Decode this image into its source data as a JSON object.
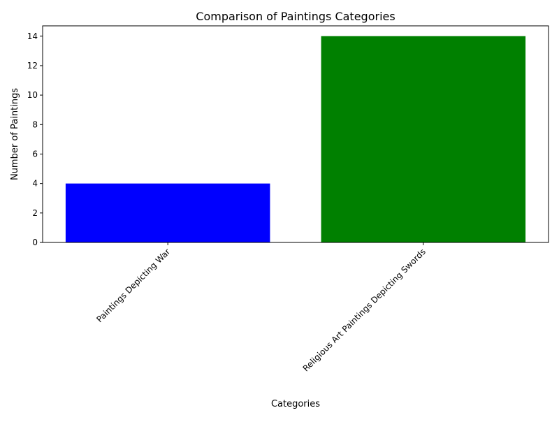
{
  "chart_data": {
    "type": "bar",
    "title": "Comparison of Paintings Categories",
    "xlabel": "Categories",
    "ylabel": "Number of Paintings",
    "categories": [
      "Paintings Depicting War",
      "Religious Art Paintings Depicting Swords"
    ],
    "values": [
      4,
      14
    ],
    "colors": [
      "#0000ff",
      "#008000"
    ],
    "ylim": [
      0,
      14.7
    ],
    "yticks": [
      0,
      2,
      4,
      6,
      8,
      10,
      12,
      14
    ],
    "xtick_rotation_deg": 45,
    "grid": false,
    "legend": "none"
  }
}
